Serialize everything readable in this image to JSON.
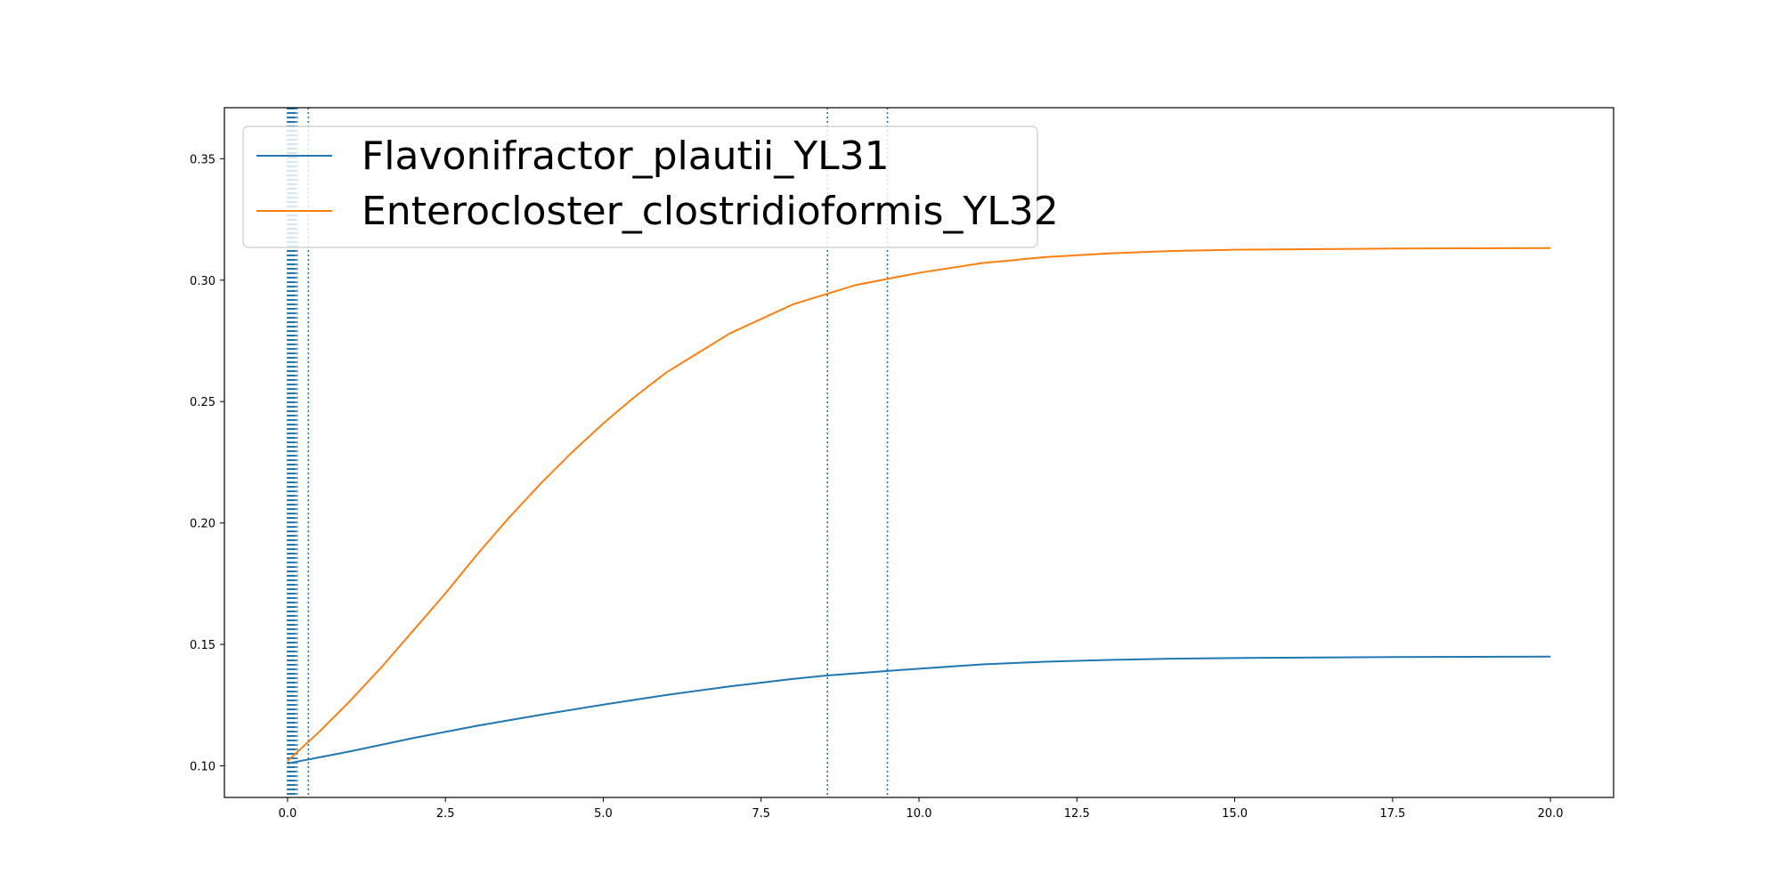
{
  "chart_data": {
    "type": "line",
    "title": "",
    "xlabel": "",
    "ylabel": "",
    "xlim": [
      -1.0,
      21.0
    ],
    "ylim": [
      0.087,
      0.371
    ],
    "xticks": [
      0.0,
      2.5,
      5.0,
      7.5,
      10.0,
      12.5,
      15.0,
      17.5,
      20.0
    ],
    "xtick_labels": [
      "0.0",
      "2.5",
      "5.0",
      "7.5",
      "10.0",
      "12.5",
      "15.0",
      "17.5",
      "20.0"
    ],
    "yticks": [
      0.1,
      0.15,
      0.2,
      0.25,
      0.3,
      0.35
    ],
    "ytick_labels": [
      "0.10",
      "0.15",
      "0.20",
      "0.25",
      "0.30",
      "0.35"
    ],
    "grid": false,
    "legend": "upper-left",
    "series": [
      {
        "name": "Flavonifractor_plautii_YL31",
        "color": "#1f77b4",
        "x": [
          0.0,
          0.5,
          1.0,
          2.0,
          3.0,
          4.0,
          5.0,
          6.0,
          7.0,
          8.0,
          8.5,
          9.5,
          10.0,
          11.0,
          12.0,
          13.0,
          14.0,
          15.0,
          17.5,
          20.0
        ],
        "y": [
          0.101,
          0.1035,
          0.106,
          0.1115,
          0.1165,
          0.121,
          0.1252,
          0.1292,
          0.1327,
          0.1358,
          0.1371,
          0.1391,
          0.14,
          0.1418,
          0.1429,
          0.1436,
          0.1441,
          0.1444,
          0.1448,
          0.145
        ]
      },
      {
        "name": "Enterocloster_clostridioformis_YL32",
        "color": "#ff7f0e",
        "x": [
          0.0,
          0.5,
          1.0,
          1.5,
          2.0,
          2.5,
          3.0,
          3.5,
          4.0,
          4.5,
          5.0,
          5.5,
          6.0,
          7.0,
          8.0,
          9.0,
          10.0,
          11.0,
          12.0,
          13.0,
          14.0,
          15.0,
          17.5,
          20.0
        ],
        "y": [
          0.102,
          0.114,
          0.127,
          0.141,
          0.156,
          0.171,
          0.187,
          0.202,
          0.216,
          0.229,
          0.241,
          0.252,
          0.262,
          0.278,
          0.29,
          0.298,
          0.303,
          0.307,
          0.3095,
          0.311,
          0.312,
          0.3125,
          0.313,
          0.3132
        ]
      }
    ],
    "vlines": {
      "color": "#1f77b4",
      "style": "dotted",
      "x": [
        0.0,
        0.01,
        0.02,
        0.03,
        0.04,
        0.05,
        0.06,
        0.07,
        0.08,
        0.09,
        0.1,
        0.11,
        0.12,
        0.15,
        0.33,
        8.55,
        9.5
      ]
    }
  }
}
